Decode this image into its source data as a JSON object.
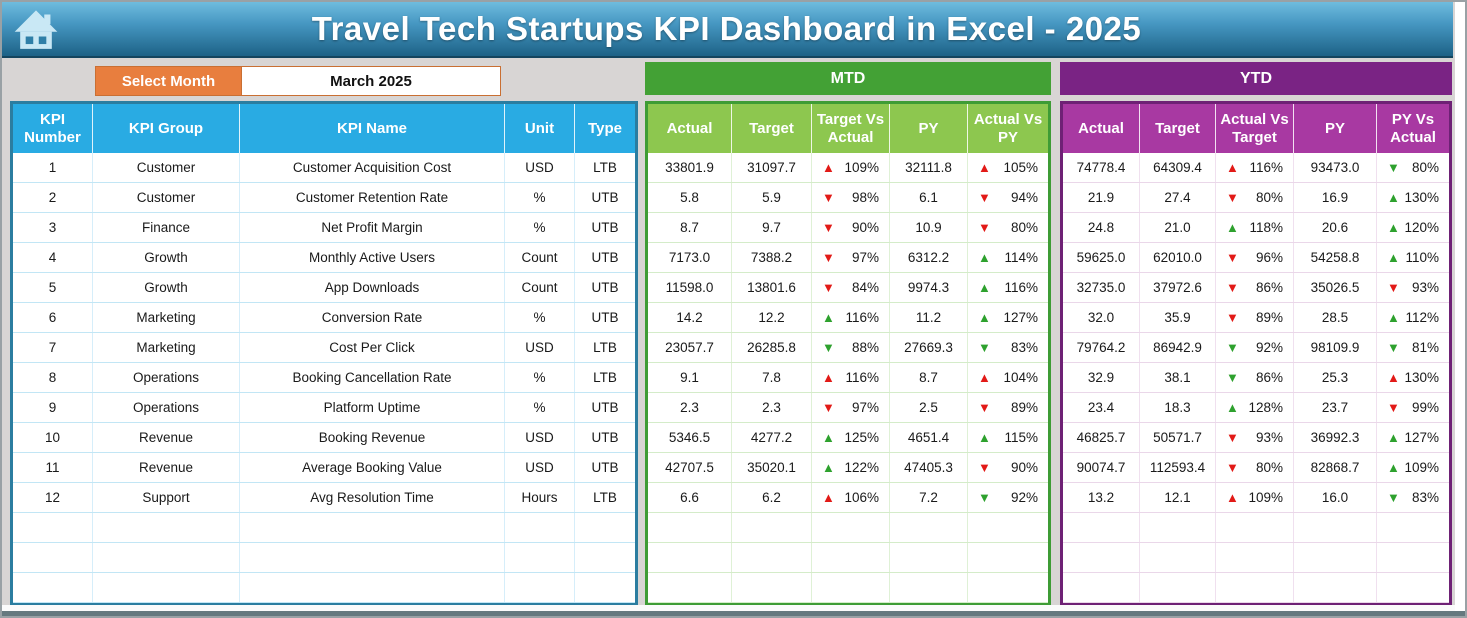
{
  "title": "Travel Tech Startups KPI Dashboard in Excel - 2025",
  "filter": {
    "label": "Select Month",
    "value": "March 2025"
  },
  "sections": {
    "mtd": "MTD",
    "ytd": "YTD"
  },
  "kpi_headers": {
    "number": "KPI Number",
    "group": "KPI Group",
    "name": "KPI Name",
    "unit": "Unit",
    "type": "Type"
  },
  "mtd_headers": [
    "Actual",
    "Target",
    "Target Vs Actual",
    "PY",
    "Actual Vs PY"
  ],
  "ytd_headers": [
    "Actual",
    "Target",
    "Actual Vs Target",
    "PY",
    "PY Vs Actual"
  ],
  "colors": {
    "header_blue": "#29abe3",
    "band_green": "#43a135",
    "header_light_green": "#8dc74f",
    "band_purple": "#7a2384",
    "header_magenta": "#a839a2",
    "accent_orange": "#e87e3e",
    "arrow_red": "#e21a17",
    "arrow_green": "#2ea12e"
  },
  "empty_row_count": 3,
  "rows": [
    {
      "number": "1",
      "group": "Customer",
      "name": "Customer Acquisition Cost",
      "unit": "USD",
      "type": "LTB",
      "mtd": {
        "actual": "33801.9",
        "target": "31097.7",
        "target_vs_actual": {
          "dir": "up",
          "color": "red",
          "value": "109%"
        },
        "py": "32111.8",
        "actual_vs_py": {
          "dir": "up",
          "color": "red",
          "value": "105%"
        }
      },
      "ytd": {
        "actual": "74778.4",
        "target": "64309.4",
        "actual_vs_target": {
          "dir": "up",
          "color": "red",
          "value": "116%"
        },
        "py": "93473.0",
        "py_vs_actual": {
          "dir": "down",
          "color": "green",
          "value": "80%"
        }
      }
    },
    {
      "number": "2",
      "group": "Customer",
      "name": "Customer Retention Rate",
      "unit": "%",
      "type": "UTB",
      "mtd": {
        "actual": "5.8",
        "target": "5.9",
        "target_vs_actual": {
          "dir": "down",
          "color": "red",
          "value": "98%"
        },
        "py": "6.1",
        "actual_vs_py": {
          "dir": "down",
          "color": "red",
          "value": "94%"
        }
      },
      "ytd": {
        "actual": "21.9",
        "target": "27.4",
        "actual_vs_target": {
          "dir": "down",
          "color": "red",
          "value": "80%"
        },
        "py": "16.9",
        "py_vs_actual": {
          "dir": "up",
          "color": "green",
          "value": "130%"
        }
      }
    },
    {
      "number": "3",
      "group": "Finance",
      "name": "Net Profit Margin",
      "unit": "%",
      "type": "UTB",
      "mtd": {
        "actual": "8.7",
        "target": "9.7",
        "target_vs_actual": {
          "dir": "down",
          "color": "red",
          "value": "90%"
        },
        "py": "10.9",
        "actual_vs_py": {
          "dir": "down",
          "color": "red",
          "value": "80%"
        }
      },
      "ytd": {
        "actual": "24.8",
        "target": "21.0",
        "actual_vs_target": {
          "dir": "up",
          "color": "green",
          "value": "118%"
        },
        "py": "20.6",
        "py_vs_actual": {
          "dir": "up",
          "color": "green",
          "value": "120%"
        }
      }
    },
    {
      "number": "4",
      "group": "Growth",
      "name": "Monthly Active Users",
      "unit": "Count",
      "type": "UTB",
      "mtd": {
        "actual": "7173.0",
        "target": "7388.2",
        "target_vs_actual": {
          "dir": "down",
          "color": "red",
          "value": "97%"
        },
        "py": "6312.2",
        "actual_vs_py": {
          "dir": "up",
          "color": "green",
          "value": "114%"
        }
      },
      "ytd": {
        "actual": "59625.0",
        "target": "62010.0",
        "actual_vs_target": {
          "dir": "down",
          "color": "red",
          "value": "96%"
        },
        "py": "54258.8",
        "py_vs_actual": {
          "dir": "up",
          "color": "green",
          "value": "110%"
        }
      }
    },
    {
      "number": "5",
      "group": "Growth",
      "name": "App Downloads",
      "unit": "Count",
      "type": "UTB",
      "mtd": {
        "actual": "11598.0",
        "target": "13801.6",
        "target_vs_actual": {
          "dir": "down",
          "color": "red",
          "value": "84%"
        },
        "py": "9974.3",
        "actual_vs_py": {
          "dir": "up",
          "color": "green",
          "value": "116%"
        }
      },
      "ytd": {
        "actual": "32735.0",
        "target": "37972.6",
        "actual_vs_target": {
          "dir": "down",
          "color": "red",
          "value": "86%"
        },
        "py": "35026.5",
        "py_vs_actual": {
          "dir": "down",
          "color": "red",
          "value": "93%"
        }
      }
    },
    {
      "number": "6",
      "group": "Marketing",
      "name": "Conversion Rate",
      "unit": "%",
      "type": "UTB",
      "mtd": {
        "actual": "14.2",
        "target": "12.2",
        "target_vs_actual": {
          "dir": "up",
          "color": "green",
          "value": "116%"
        },
        "py": "11.2",
        "actual_vs_py": {
          "dir": "up",
          "color": "green",
          "value": "127%"
        }
      },
      "ytd": {
        "actual": "32.0",
        "target": "35.9",
        "actual_vs_target": {
          "dir": "down",
          "color": "red",
          "value": "89%"
        },
        "py": "28.5",
        "py_vs_actual": {
          "dir": "up",
          "color": "green",
          "value": "112%"
        }
      }
    },
    {
      "number": "7",
      "group": "Marketing",
      "name": "Cost Per Click",
      "unit": "USD",
      "type": "LTB",
      "mtd": {
        "actual": "23057.7",
        "target": "26285.8",
        "target_vs_actual": {
          "dir": "down",
          "color": "green",
          "value": "88%"
        },
        "py": "27669.3",
        "actual_vs_py": {
          "dir": "down",
          "color": "green",
          "value": "83%"
        }
      },
      "ytd": {
        "actual": "79764.2",
        "target": "86942.9",
        "actual_vs_target": {
          "dir": "down",
          "color": "green",
          "value": "92%"
        },
        "py": "98109.9",
        "py_vs_actual": {
          "dir": "down",
          "color": "green",
          "value": "81%"
        }
      }
    },
    {
      "number": "8",
      "group": "Operations",
      "name": "Booking Cancellation Rate",
      "unit": "%",
      "type": "LTB",
      "mtd": {
        "actual": "9.1",
        "target": "7.8",
        "target_vs_actual": {
          "dir": "up",
          "color": "red",
          "value": "116%"
        },
        "py": "8.7",
        "actual_vs_py": {
          "dir": "up",
          "color": "red",
          "value": "104%"
        }
      },
      "ytd": {
        "actual": "32.9",
        "target": "38.1",
        "actual_vs_target": {
          "dir": "down",
          "color": "green",
          "value": "86%"
        },
        "py": "25.3",
        "py_vs_actual": {
          "dir": "up",
          "color": "red",
          "value": "130%"
        }
      }
    },
    {
      "number": "9",
      "group": "Operations",
      "name": "Platform Uptime",
      "unit": "%",
      "type": "UTB",
      "mtd": {
        "actual": "2.3",
        "target": "2.3",
        "target_vs_actual": {
          "dir": "down",
          "color": "red",
          "value": "97%"
        },
        "py": "2.5",
        "actual_vs_py": {
          "dir": "down",
          "color": "red",
          "value": "89%"
        }
      },
      "ytd": {
        "actual": "23.4",
        "target": "18.3",
        "actual_vs_target": {
          "dir": "up",
          "color": "green",
          "value": "128%"
        },
        "py": "23.7",
        "py_vs_actual": {
          "dir": "down",
          "color": "red",
          "value": "99%"
        }
      }
    },
    {
      "number": "10",
      "group": "Revenue",
      "name": "Booking Revenue",
      "unit": "USD",
      "type": "UTB",
      "mtd": {
        "actual": "5346.5",
        "target": "4277.2",
        "target_vs_actual": {
          "dir": "up",
          "color": "green",
          "value": "125%"
        },
        "py": "4651.4",
        "actual_vs_py": {
          "dir": "up",
          "color": "green",
          "value": "115%"
        }
      },
      "ytd": {
        "actual": "46825.7",
        "target": "50571.7",
        "actual_vs_target": {
          "dir": "down",
          "color": "red",
          "value": "93%"
        },
        "py": "36992.3",
        "py_vs_actual": {
          "dir": "up",
          "color": "green",
          "value": "127%"
        }
      }
    },
    {
      "number": "11",
      "group": "Revenue",
      "name": "Average Booking Value",
      "unit": "USD",
      "type": "UTB",
      "mtd": {
        "actual": "42707.5",
        "target": "35020.1",
        "target_vs_actual": {
          "dir": "up",
          "color": "green",
          "value": "122%"
        },
        "py": "47405.3",
        "actual_vs_py": {
          "dir": "down",
          "color": "red",
          "value": "90%"
        }
      },
      "ytd": {
        "actual": "90074.7",
        "target": "112593.4",
        "actual_vs_target": {
          "dir": "down",
          "color": "red",
          "value": "80%"
        },
        "py": "82868.7",
        "py_vs_actual": {
          "dir": "up",
          "color": "green",
          "value": "109%"
        }
      }
    },
    {
      "number": "12",
      "group": "Support",
      "name": "Avg Resolution Time",
      "unit": "Hours",
      "type": "LTB",
      "mtd": {
        "actual": "6.6",
        "target": "6.2",
        "target_vs_actual": {
          "dir": "up",
          "color": "red",
          "value": "106%"
        },
        "py": "7.2",
        "actual_vs_py": {
          "dir": "down",
          "color": "green",
          "value": "92%"
        }
      },
      "ytd": {
        "actual": "13.2",
        "target": "12.1",
        "actual_vs_target": {
          "dir": "up",
          "color": "red",
          "value": "109%"
        },
        "py": "16.0",
        "py_vs_actual": {
          "dir": "down",
          "color": "green",
          "value": "83%"
        }
      }
    }
  ]
}
